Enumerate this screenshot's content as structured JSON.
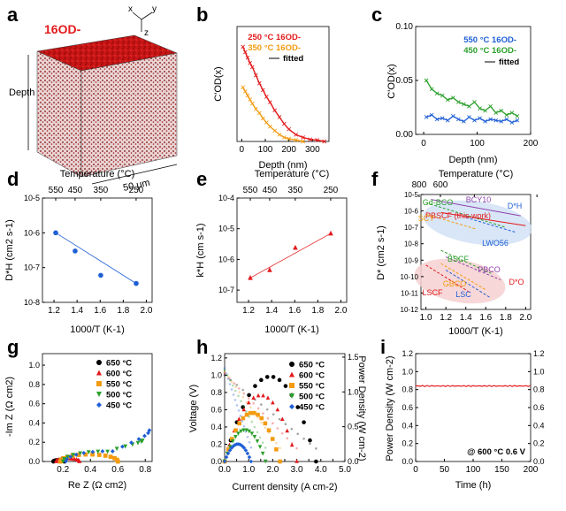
{
  "colors": {
    "red": "#e41a1c",
    "orange": "#f39c12",
    "blue": "#1f5fd6",
    "green": "#2ca02c",
    "black": "#000000",
    "cube_red": "#d61818",
    "cube_dark": "#5a0a0a"
  },
  "panel_labels": [
    "a",
    "b",
    "c",
    "d",
    "e",
    "f",
    "g",
    "h",
    "i"
  ],
  "panel_a": {
    "label": "a",
    "ion_label": "16OD-",
    "depth_label": "Depth",
    "scale_label": "50 μm",
    "axes": {
      "x": "x",
      "y": "y",
      "z": "z"
    }
  },
  "chart_data": [
    {
      "panel": "b",
      "type": "scatter",
      "xlabel": "Depth (nm)",
      "ylabel": "C'OD(x)",
      "xlim": [
        -20,
        370
      ],
      "ylim": [
        0,
        0.85
      ],
      "xticks": [
        "0",
        "100",
        "200",
        "300"
      ],
      "series": [
        {
          "name": "250 °C 16OD-",
          "color": "#e41a1c",
          "x": [
            5,
            15,
            25,
            35,
            45,
            60,
            75,
            90,
            105,
            120,
            140,
            160,
            180,
            200,
            230,
            260,
            290,
            320,
            350
          ],
          "y": [
            0.7,
            0.66,
            0.62,
            0.58,
            0.55,
            0.49,
            0.43,
            0.38,
            0.33,
            0.29,
            0.23,
            0.18,
            0.13,
            0.09,
            0.05,
            0.03,
            0.015,
            0.01,
            0.0
          ]
        },
        {
          "name": "350 °C 16OD-",
          "color": "#f39c12",
          "x": [
            5,
            15,
            25,
            35,
            45,
            60,
            75,
            90,
            105,
            120,
            140,
            160,
            180,
            200,
            230,
            260
          ],
          "y": [
            0.4,
            0.37,
            0.34,
            0.31,
            0.28,
            0.24,
            0.21,
            0.17,
            0.14,
            0.11,
            0.08,
            0.05,
            0.03,
            0.02,
            0.01,
            0.0
          ]
        }
      ],
      "legend": [
        "250 °C 16OD-",
        "350 °C 16OD-",
        "fitted"
      ]
    },
    {
      "panel": "c",
      "type": "scatter",
      "xlabel": "Depth (nm)",
      "ylabel": "C'OD(x)",
      "xlim": [
        -15,
        200
      ],
      "ylim": [
        0,
        0.1
      ],
      "xticks": [
        "0",
        "100",
        "200"
      ],
      "yticks": [
        "0.00",
        "0.05",
        "0.10"
      ],
      "series": [
        {
          "name": "550 °C 16OD-",
          "color": "#1f5fd6",
          "x": [
            5,
            15,
            25,
            35,
            45,
            55,
            65,
            75,
            85,
            95,
            105,
            115,
            125,
            135,
            145,
            155,
            165,
            175
          ],
          "y": [
            0.016,
            0.018,
            0.014,
            0.015,
            0.013,
            0.017,
            0.014,
            0.012,
            0.016,
            0.013,
            0.015,
            0.012,
            0.014,
            0.013,
            0.012,
            0.014,
            0.011,
            0.013
          ]
        },
        {
          "name": "450 °C 16OD-",
          "color": "#2ca02c",
          "x": [
            5,
            15,
            25,
            35,
            45,
            55,
            65,
            75,
            85,
            95,
            105,
            115,
            125,
            135,
            145,
            155,
            165,
            175
          ],
          "y": [
            0.05,
            0.042,
            0.038,
            0.036,
            0.032,
            0.034,
            0.03,
            0.028,
            0.026,
            0.03,
            0.024,
            0.022,
            0.026,
            0.02,
            0.022,
            0.018,
            0.02,
            0.017
          ]
        }
      ],
      "legend": [
        "550 °C 16OD-",
        "450 °C 16OD-",
        "fitted"
      ]
    },
    {
      "panel": "d",
      "type": "scatter",
      "xlabel": "1000/T (K-1)",
      "ylabel": "D*H (cm2 s-1)",
      "top_xlabel": "Temperature (°C)",
      "top_ticks": [
        "550",
        "450",
        "350",
        "250"
      ],
      "xticks": [
        "1.2",
        "1.4",
        "1.6",
        "1.8",
        "2.0"
      ],
      "yticks": [
        "10-8",
        "10-7",
        "10-6",
        "10-5"
      ],
      "log_y": true,
      "xlim": [
        1.1,
        2.05
      ],
      "ylim_exp": [
        -8,
        -5
      ],
      "x": [
        1.215,
        1.383,
        1.605,
        1.912
      ],
      "y": [
        1e-06,
        3e-07,
        6e-08,
        3.5e-08
      ],
      "color": "#1f5fd6"
    },
    {
      "panel": "e",
      "type": "scatter",
      "xlabel": "1000/T (K-1)",
      "ylabel": "k*H (cm s-1)",
      "top_xlabel": "Temperature (°C)",
      "top_ticks": [
        "550",
        "450",
        "350",
        "250"
      ],
      "xticks": [
        "1.2",
        "1.4",
        "1.6",
        "1.8",
        "2.0"
      ],
      "yticks": [
        "10-7",
        "10-6",
        "10-5",
        "10-4"
      ],
      "log_y": true,
      "xlim": [
        1.1,
        2.05
      ],
      "ylim_exp": [
        -7.4,
        -4
      ],
      "x": [
        1.215,
        1.383,
        1.605,
        1.912
      ],
      "y": [
        2.5e-07,
        4.5e-07,
        2.4e-06,
        7e-06
      ],
      "color": "#e41a1c"
    },
    {
      "panel": "f",
      "type": "line",
      "xlabel": "1000/T (K-1)",
      "ylabel": "D* (cm2 s-1)",
      "top_xlabel": "Temperature (°C)",
      "top_ticks": [
        "800",
        "600",
        "400",
        "200"
      ],
      "xticks": [
        "1.0",
        "1.2",
        "1.4",
        "1.6",
        "1.8",
        "2.0"
      ],
      "yticks": [
        "10-12",
        "10-11",
        "10-10",
        "10-9",
        "10-8",
        "10-7",
        "10-6",
        "10-5"
      ],
      "log_y": true,
      "xlim": [
        0.95,
        2.05
      ],
      "ylim_exp": [
        -12,
        -5
      ],
      "labels": [
        "Gd-BCO",
        "BCY10",
        "PBSCF (this work)",
        "SCY",
        "LWO56",
        "D*H",
        "BSCF",
        "PBCO",
        "GBCO",
        "LSCF",
        "LSC",
        "D*O"
      ]
    },
    {
      "panel": "g",
      "type": "scatter",
      "xlabel": "Re Z (Ω cm2)",
      "ylabel": "-Im Z (Ω cm2)",
      "xticks": [
        "0.2",
        "0.4",
        "0.6",
        "0.8"
      ],
      "yticks": [
        "0.0",
        "0.2",
        "0.4",
        "0.6",
        "0.8",
        "1.0"
      ],
      "xlim": [
        0.05,
        0.85
      ],
      "ylim": [
        0,
        1.12
      ],
      "series": [
        {
          "name": "650 °C",
          "color": "#000000",
          "x0": 0.13,
          "x1": 0.21
        },
        {
          "name": "600 °C",
          "color": "#e41a1c",
          "x0": 0.15,
          "x1": 0.32
        },
        {
          "name": "550 °C",
          "color": "#f39c12",
          "x0": 0.18,
          "x1": 0.6
        },
        {
          "name": "500 °C",
          "color": "#2ca02c",
          "x0": 0.2,
          "x1": 0.78
        },
        {
          "name": "450 °C",
          "color": "#1f5fd6",
          "x0": 0.22,
          "x1": 0.83
        }
      ]
    },
    {
      "panel": "h",
      "type": "scatter",
      "xlabel": "Current density (A cm-2)",
      "ylabel": "Voltage (V)",
      "y2label": "Power Density (W cm-2)",
      "xticks": [
        "0.0",
        "0.5",
        "1.0",
        "1.5",
        "2.0",
        "2.5",
        "3.0",
        "3.5",
        "4.0",
        "4.5",
        "5.0"
      ],
      "yticks": [
        "0.0",
        "0.2",
        "0.4",
        "0.6",
        "0.8",
        "1.0",
        "1.2"
      ],
      "y2ticks": [
        "0.0",
        "0.5",
        "1.0",
        "1.5"
      ],
      "xlim": [
        0,
        5.0
      ],
      "ylim": [
        0,
        1.25
      ],
      "y2lim": [
        0,
        1.55
      ],
      "series": [
        {
          "name": "650 °C",
          "color": "#000000",
          "ocv": 1.0,
          "imax": 3.8,
          "pmax": 1.22
        },
        {
          "name": "600 °C",
          "color": "#e41a1c",
          "ocv": 1.02,
          "imax": 3.0,
          "pmax": 0.95
        },
        {
          "name": "550 °C",
          "color": "#f39c12",
          "ocv": 1.04,
          "imax": 2.3,
          "pmax": 0.7
        },
        {
          "name": "500 °C",
          "color": "#2ca02c",
          "ocv": 1.06,
          "imax": 1.7,
          "pmax": 0.45
        },
        {
          "name": "450 °C",
          "color": "#1f5fd6",
          "ocv": 1.08,
          "imax": 1.1,
          "pmax": 0.25
        }
      ]
    },
    {
      "panel": "i",
      "type": "line",
      "xlabel": "Time (h)",
      "ylabel": "Power Density (W cm-2)",
      "xticks": [
        "0",
        "50",
        "100",
        "150",
        "200"
      ],
      "yticks": [
        "0.0",
        "0.2",
        "0.4",
        "0.6",
        "0.8",
        "1.0",
        "1.2"
      ],
      "xlim": [
        0,
        200
      ],
      "ylim": [
        0,
        1.2
      ],
      "value": 0.84,
      "color": "#e41a1c",
      "annotation": "@ 600 °C 0.6 V"
    }
  ]
}
